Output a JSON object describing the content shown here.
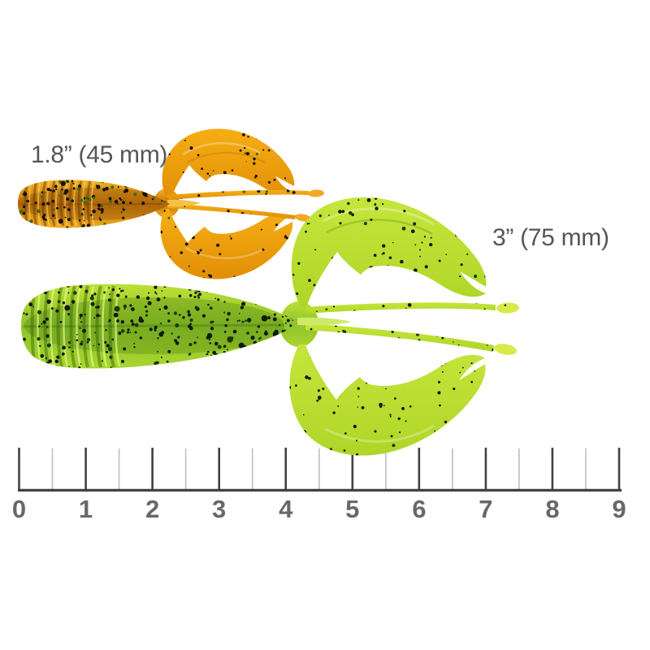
{
  "lures": [
    {
      "name": "small craw lure",
      "label": "1.8” (45 mm)",
      "colors": {
        "body_edge": "#f3b324",
        "body_core": "#bf750c",
        "body_edge2": "#f0ac1e",
        "claw": "#f6ae14",
        "claw_deep": "#e18f06",
        "bulb": "#f2a928",
        "spike": "#f4c14c",
        "speckle": "#181008",
        "speckle_alt": "#3f6a10"
      }
    },
    {
      "name": "large craw lure",
      "label": "3” (75 mm)",
      "colors": {
        "body_edge": "#bce135",
        "body_core": "#8ec32b",
        "body_edge2": "#a9d52e",
        "claw": "#c6e53b",
        "claw_deep": "#aed627",
        "bulb": "#d9e94a",
        "spike": "#cfe96b",
        "speckle": "#111a08",
        "speckle_alt": "#1b3a0c"
      }
    }
  ],
  "label_color": "#54565a",
  "ruler": {
    "numbers": [
      "0",
      "1",
      "2",
      "3",
      "4",
      "5",
      "6",
      "7",
      "8",
      "9"
    ],
    "baseline_color": "#424242",
    "major_tick_color": "#424242",
    "minor_tick_color": "#bfbfbf",
    "number_color": "#66686b"
  }
}
